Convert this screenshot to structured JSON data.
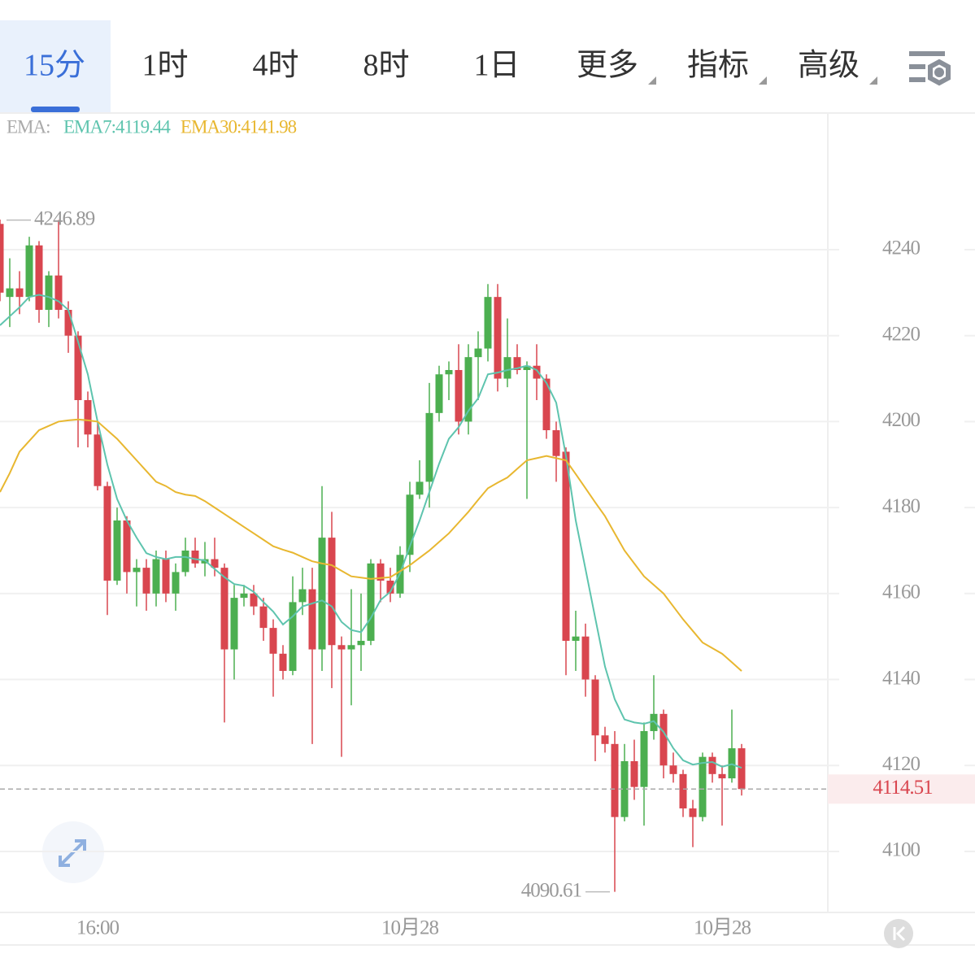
{
  "tabs": [
    {
      "label": "15分",
      "active": true
    },
    {
      "label": "1时"
    },
    {
      "label": "4时"
    },
    {
      "label": "8时"
    },
    {
      "label": "1日"
    },
    {
      "label": "更多",
      "dropdown": true
    },
    {
      "label": "指标",
      "dropdown": true
    },
    {
      "label": "高级",
      "dropdown": true
    }
  ],
  "chart_data": {
    "type": "candlestick",
    "legend_label": "EMA:",
    "categories": [
      null,
      null,
      null,
      null,
      null,
      null,
      null,
      null,
      null,
      null,
      "16:00",
      null,
      null,
      null,
      null,
      null,
      null,
      null,
      null,
      null,
      null,
      null,
      null,
      null,
      null,
      null,
      null,
      null,
      null,
      null,
      null,
      null,
      null,
      null,
      null,
      null,
      null,
      null,
      null,
      null,
      null,
      null,
      "10月28",
      null,
      null,
      null,
      null,
      null,
      null,
      null,
      null,
      null,
      null,
      null,
      null,
      null,
      null,
      null,
      null,
      null,
      null,
      null,
      null,
      null,
      null,
      null,
      null,
      null,
      null,
      null,
      null,
      null,
      null,
      null,
      "10月28",
      null,
      null
    ],
    "open": [
      4246,
      4229,
      4231,
      4229,
      4241,
      4226,
      4234,
      4226,
      4220,
      4205,
      4197,
      4185,
      4163,
      4177,
      4165,
      4166,
      4160,
      4168,
      4160,
      4165,
      4170,
      4167,
      4168,
      4166,
      4147,
      4159,
      4160,
      4157,
      4152,
      4146,
      4142,
      4158,
      4161,
      4147,
      4173,
      4148,
      4147,
      4148,
      4149,
      4167,
      4163,
      4160,
      4169,
      4183,
      4186,
      4202,
      4211,
      4212,
      4200,
      4215,
      4217,
      4229,
      4210,
      4215,
      4212,
      4213,
      4210,
      4198,
      4193,
      4149,
      4150,
      4140,
      4127,
      4125,
      4108,
      4121,
      4115,
      4128,
      4132,
      4120,
      4118,
      4110,
      4108,
      4122,
      4118,
      4117,
      4124
    ],
    "high": [
      4247,
      4238,
      4235,
      4243,
      4242,
      4235,
      4246.89,
      4228,
      4221,
      4207,
      4200,
      4186,
      4180,
      4178,
      4168,
      4168,
      4170,
      4170,
      4167,
      4173,
      4173,
      4172,
      4173,
      4167,
      4162,
      4162,
      4162,
      4159,
      4154,
      4148,
      4164,
      4166,
      4166,
      4185,
      4179,
      4150,
      4161,
      4160,
      4168,
      4168,
      4166,
      4171,
      4186,
      4191,
      4209,
      4213,
      4214,
      4218,
      4218,
      4221,
      4232,
      4232,
      4224,
      4218,
      4214,
      4218,
      4211,
      4200,
      4194,
      4156,
      4153,
      4141,
      4129,
      4128,
      4125,
      4126,
      4130,
      4141,
      4133,
      4123,
      4119,
      4112,
      4123,
      4123,
      4120,
      4133,
      4125
    ],
    "low": [
      4228,
      4222,
      4225,
      4228,
      4223,
      4222,
      4224,
      4216,
      4194,
      4194,
      4184,
      4155,
      4162,
      4160,
      4157,
      4156,
      4157,
      4158,
      4156,
      4164,
      4166,
      4164,
      4164,
      4130,
      4140,
      4157,
      4155,
      4149,
      4136,
      4140,
      4141,
      4155,
      4125,
      4142,
      4138,
      4122,
      4134,
      4142,
      4148,
      4158,
      4158,
      4159,
      4165,
      4182,
      4180,
      4200,
      4205,
      4197,
      4197,
      4205,
      4214,
      4207,
      4208,
      4211,
      4182,
      4205,
      4196,
      4186,
      4141,
      4142,
      4136,
      4121,
      4123,
      4090.61,
      4107,
      4112,
      4106,
      4126,
      4117,
      4116,
      4108,
      4101,
      4107,
      4116,
      4106,
      4116,
      4113
    ],
    "close": [
      4230,
      4231,
      4229,
      4241,
      4226,
      4234,
      4226,
      4220,
      4205,
      4197,
      4185,
      4163,
      4177,
      4165,
      4166,
      4160,
      4168,
      4160,
      4165,
      4170,
      4167,
      4168,
      4166,
      4147,
      4159,
      4160,
      4157,
      4152,
      4146,
      4142,
      4158,
      4161,
      4147,
      4173,
      4148,
      4147,
      4148,
      4149,
      4167,
      4163,
      4160,
      4169,
      4183,
      4186,
      4202,
      4211,
      4212,
      4200,
      4215,
      4217,
      4229,
      4210,
      4215,
      4212,
      4213,
      4210,
      4198,
      4192,
      4149,
      4150,
      4140,
      4127,
      4125,
      4108,
      4121,
      4115,
      4128,
      4132,
      4120,
      4118,
      4110,
      4108,
      4122,
      4118,
      4117,
      4124,
      4114.51
    ],
    "up_color": "#4caf50",
    "down_color": "#d9464f",
    "series": [
      {
        "name": "EMA7:4119.44",
        "color": "#5ec4ae",
        "values": [
          4222.4,
          4224.5,
          4226.6,
          4229,
          4229.5,
          4229,
          4228,
          4226,
          4218.6,
          4211,
          4200,
          4190,
          4182,
          4177,
          4173,
          4169.4,
          4168.5,
          4168,
          4168.5,
          4168.5,
          4168,
          4167.7,
          4165.7,
          4163.8,
          4162.2,
          4161.8,
          4160.4,
          4158,
          4155.8,
          4152.8,
          4154.7,
          4157,
          4157.7,
          4158.4,
          4157,
          4153.4,
          4151.5,
          4151,
          4154.3,
          4158.5,
          4160.4,
          4164.7,
          4171,
          4177,
          4183.6,
          4190.2,
          4196,
          4198.7,
          4202.5,
          4205.4,
          4211,
          4211.4,
          4212,
          4212.4,
          4213,
          4212,
          4209,
          4204.4,
          4192,
          4177,
          4165.7,
          4154.3,
          4143,
          4135.4,
          4130.7,
          4130,
          4129.7,
          4130.3,
          4127.8,
          4124,
          4121.2,
          4120.2,
          4120.6,
          4120.8,
          4119.7,
          4120.3,
          4119.44
        ]
      },
      {
        "name": "EMA30:4141.98",
        "color": "#e8b730",
        "values": [
          4183.6,
          4188,
          4193,
          4195.5,
          4198,
          4199,
          4200,
          4200.3,
          4200.5,
          4200.3,
          4200,
          4198,
          4196,
          4193.5,
          4191,
          4188.5,
          4186,
          4185,
          4183.6,
          4183,
          4182.7,
          4181.5,
          4180,
          4178.5,
          4177,
          4175.5,
          4174,
          4172.5,
          4171,
          4170.2,
          4169.5,
          4168.5,
          4167.5,
          4167,
          4166.6,
          4165.3,
          4164,
          4163.7,
          4163.4,
          4163.6,
          4163.8,
          4165.2,
          4166.6,
          4168.3,
          4170,
          4172,
          4174,
          4176.5,
          4179,
          4181.8,
          4184.5,
          4185.8,
          4187,
          4189,
          4191,
          4191.5,
          4192,
          4191.5,
          4191,
          4187.8,
          4184.5,
          4181.2,
          4178,
          4174,
          4170,
          4167,
          4164,
          4162,
          4160,
          4157,
          4154,
          4151.3,
          4148.6,
          4147.3,
          4146,
          4144,
          4141.98
        ]
      }
    ],
    "max_value": 4246.89,
    "min_value": 4090.61,
    "last_price": 4114.51,
    "ylim": [
      4085.8,
      4271.6
    ],
    "yticks": [
      4100,
      4120,
      4140,
      4160,
      4180,
      4200,
      4220,
      4240
    ],
    "grid": true
  }
}
